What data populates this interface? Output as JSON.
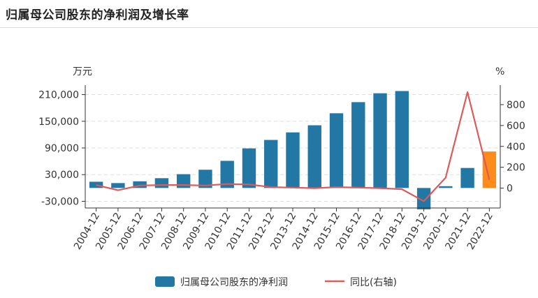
{
  "header": {
    "title": "归属母公司股东的净利润及增长率"
  },
  "colors": {
    "bar": "#2277a5",
    "bar_highlight": "#ff8c1a",
    "line": "#dc5a5a",
    "grid": "#dddddd",
    "axis": "#333333"
  },
  "chart_data": {
    "type": "bar",
    "categories": [
      "2004-12",
      "2005-12",
      "2006-12",
      "2007-12",
      "2008-12",
      "2009-12",
      "2010-12",
      "2011-12",
      "2012-12",
      "2013-12",
      "2014-12",
      "2015-12",
      "2016-12",
      "2017-12",
      "2018-12",
      "2019-12",
      "2020-12",
      "2021-12",
      "2022-12"
    ],
    "series": [
      {
        "name": "归属母公司股东的净利润",
        "axis": "left",
        "type": "bar",
        "values": [
          14000,
          11000,
          15000,
          22000,
          31000,
          41000,
          61000,
          89000,
          108000,
          125000,
          141000,
          168000,
          193000,
          213000,
          218000,
          -48000,
          4000,
          45000,
          82000
        ],
        "highlight_index": 18
      },
      {
        "name": "同比(右轴)",
        "axis": "right",
        "type": "line",
        "values": [
          30,
          -20,
          25,
          30,
          30,
          25,
          40,
          35,
          10,
          5,
          0,
          10,
          5,
          0,
          -10,
          -125,
          100,
          920,
          80
        ]
      }
    ],
    "left_axis": {
      "unit": "万元",
      "ticks": [
        210000,
        150000,
        90000,
        30000,
        -30000
      ],
      "tick_labels": [
        "210,000",
        "150,000",
        "90,000",
        "30,000",
        "-30,000"
      ],
      "range": [
        -45000,
        225000
      ]
    },
    "right_axis": {
      "unit": "%",
      "ticks": [
        800,
        600,
        400,
        200,
        0
      ],
      "tick_labels": [
        "800",
        "600",
        "400",
        "200",
        "0"
      ],
      "range": [
        -190,
        960
      ]
    },
    "grid": true,
    "legend_position": "bottom-center"
  }
}
